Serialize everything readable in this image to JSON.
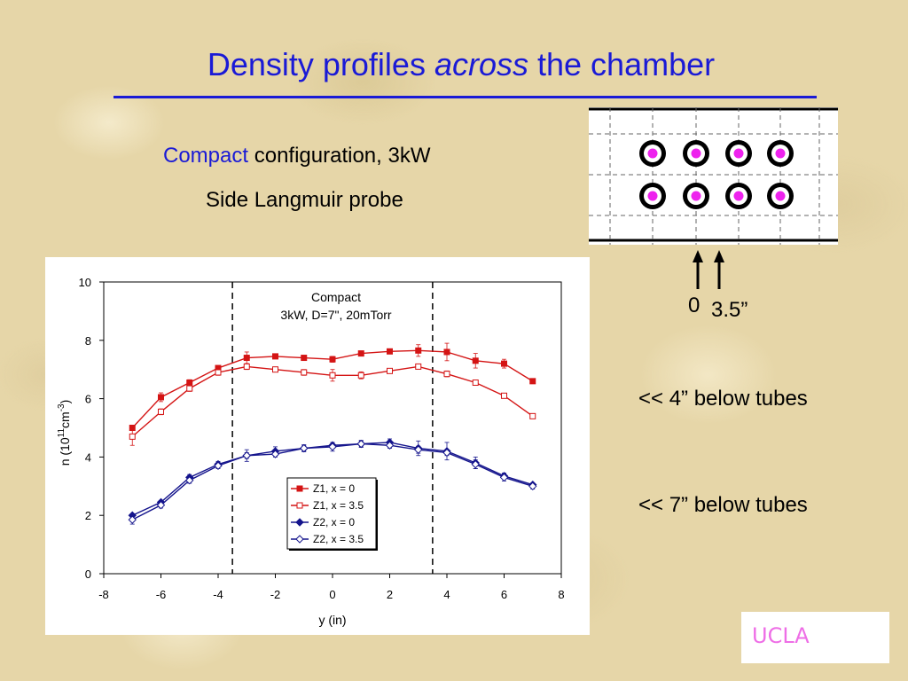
{
  "slide": {
    "title_pre": "Density profiles ",
    "title_em": "across",
    "title_post": " the chamber",
    "config_keyword": "Compact",
    "config_rest": " configuration, 3kW",
    "probe_label": "Side Langmuir probe",
    "position_label_0": "0",
    "position_label_35": "3.5”",
    "note_4": "<< 4” below tubes",
    "note_7": "<< 7” below tubes",
    "logo_text": "UCLA"
  },
  "colors": {
    "title_blue": "#1a1ad6",
    "z1_red": "#d41414",
    "z2_navy": "#14148c",
    "tube_center_magenta": "#ee22ee",
    "logo_pink": "#ee6ee6"
  },
  "chart_data": {
    "type": "line",
    "annotation_line1": "Compact",
    "annotation_line2": "3kW, D=7\", 20mTorr",
    "xlabel": "y (in)",
    "ylabel_main": "n (10",
    "ylabel_sup1": "11",
    "ylabel_mid": "cm",
    "ylabel_sup2": "-3",
    "ylabel_end": ")",
    "xlim": [
      -8,
      8
    ],
    "ylim": [
      0,
      10
    ],
    "xticks": [
      "-8",
      "-6",
      "-4",
      "-2",
      "0",
      "2",
      "4",
      "6",
      "8"
    ],
    "yticks": [
      "0",
      "2",
      "4",
      "6",
      "8",
      "10"
    ],
    "vertical_dashed_lines_x": [
      -3.5,
      3.5
    ],
    "grid": false,
    "legend_position": "bottom-center",
    "series": [
      {
        "name": "Z1, x = 0",
        "marker": "filled-square",
        "color": "#d41414",
        "x": [
          -7,
          -6,
          -5,
          -4,
          -3,
          -2,
          -1,
          0,
          1,
          2,
          3,
          4,
          5,
          6,
          7
        ],
        "y": [
          5.0,
          6.05,
          6.55,
          7.05,
          7.4,
          7.45,
          7.4,
          7.35,
          7.55,
          7.62,
          7.65,
          7.6,
          7.3,
          7.2,
          6.6
        ],
        "err": [
          0.05,
          0.15,
          0.1,
          0.08,
          0.2,
          0.08,
          0.08,
          0.1,
          0.05,
          0.05,
          0.2,
          0.3,
          0.25,
          0.15,
          0.05
        ]
      },
      {
        "name": "Z1, x = 3.5",
        "marker": "open-square",
        "color": "#d41414",
        "x": [
          -7,
          -6,
          -5,
          -4,
          -3,
          -2,
          -1,
          0,
          1,
          2,
          3,
          4,
          5,
          6,
          7
        ],
        "y": [
          4.7,
          5.55,
          6.35,
          6.9,
          7.1,
          7.0,
          6.9,
          6.8,
          6.8,
          6.95,
          7.1,
          6.85,
          6.55,
          6.1,
          5.4
        ],
        "err": [
          0.3,
          0.1,
          0.1,
          0.1,
          0.1,
          0.08,
          0.1,
          0.2,
          0.12,
          0.05,
          0.08,
          0.1,
          0.05,
          0.05,
          0.05
        ]
      },
      {
        "name": "Z2, x = 0",
        "marker": "filled-diamond",
        "color": "#14148c",
        "x": [
          -7,
          -6,
          -5,
          -4,
          -3,
          -2,
          -1,
          0,
          1,
          2,
          3,
          4,
          5,
          6,
          7
        ],
        "y": [
          2.0,
          2.45,
          3.3,
          3.75,
          4.05,
          4.2,
          4.3,
          4.4,
          4.45,
          4.5,
          4.3,
          4.2,
          3.8,
          3.35,
          3.05
        ],
        "err": [
          0.05,
          0.05,
          0.1,
          0.1,
          0.2,
          0.15,
          0.12,
          0.1,
          0.1,
          0.12,
          0.25,
          0.3,
          0.2,
          0.1,
          0.05
        ]
      },
      {
        "name": "Z2, x = 3.5",
        "marker": "open-diamond",
        "color": "#14148c",
        "x": [
          -7,
          -6,
          -5,
          -4,
          -3,
          -2,
          -1,
          0,
          1,
          2,
          3,
          4,
          5,
          6,
          7
        ],
        "y": [
          1.85,
          2.35,
          3.2,
          3.7,
          4.05,
          4.1,
          4.3,
          4.35,
          4.45,
          4.4,
          4.25,
          4.15,
          3.75,
          3.3,
          3.0
        ],
        "err": [
          0.15,
          0.1,
          0.1,
          0.1,
          0.1,
          0.1,
          0.1,
          0.15,
          0.12,
          0.1,
          0.12,
          0.1,
          0.15,
          0.12,
          0.1
        ]
      }
    ]
  }
}
